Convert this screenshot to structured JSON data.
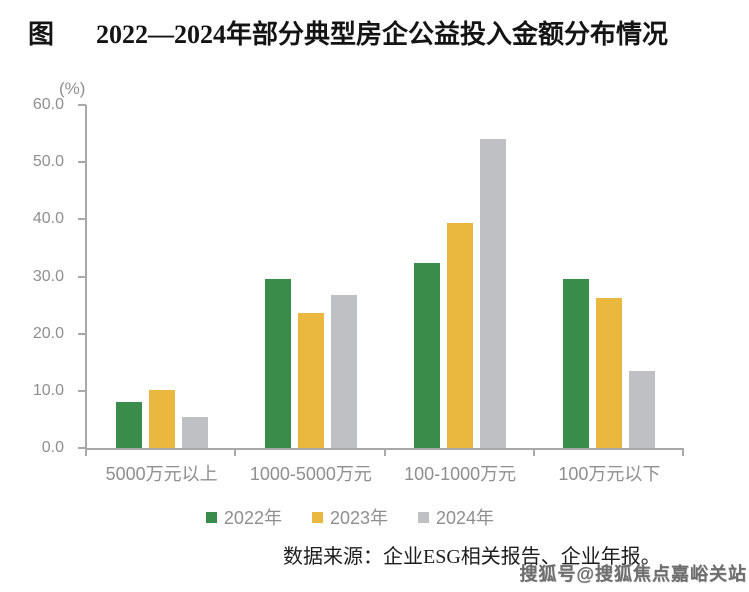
{
  "title": {
    "prefix": "图",
    "text": "2022—2024年部分典型房企公益投入金额分布情况"
  },
  "chart_data": {
    "type": "bar",
    "title": "2022—2024年部分典型房企公益投入金额分布情况",
    "unit_label": "(%)",
    "categories": [
      "5000万元以上",
      "1000-5000万元",
      "100-1000万元",
      "100万元以下"
    ],
    "series": [
      {
        "name": "2022年",
        "color": "#3a8c4a",
        "values": [
          8.0,
          29.5,
          32.4,
          29.5
        ]
      },
      {
        "name": "2023年",
        "color": "#eab83e",
        "values": [
          10.2,
          23.6,
          39.4,
          26.2
        ]
      },
      {
        "name": "2024年",
        "color": "#bfc0c3",
        "values": [
          5.4,
          26.8,
          54.0,
          13.4
        ]
      }
    ],
    "ylim": [
      0,
      60
    ],
    "ytick_labels": [
      "0.0",
      "10.0",
      "20.0",
      "30.0",
      "40.0",
      "50.0",
      "60.0"
    ],
    "ylabel": "(%)",
    "xlabel": "",
    "legend_position": "bottom",
    "grid": false
  },
  "source_note": "数据来源：企业ESG相关报告、企业年报。",
  "watermark": "搜狐号@搜狐焦点嘉峪关站",
  "colors": {
    "axis": "#a9a9a9",
    "axis_text": "#8f8f8f",
    "title_text": "#141414",
    "source_text": "#1e1e1e",
    "watermark_text": "#6e6e6e"
  }
}
